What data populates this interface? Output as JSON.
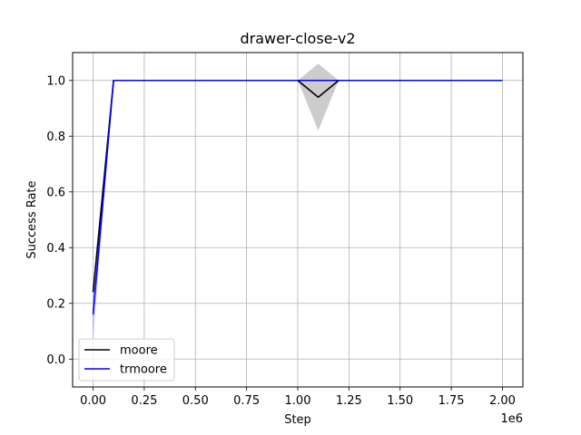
{
  "chart_data": {
    "type": "line",
    "title": "drawer-close-v2",
    "xlabel": "Step",
    "ylabel": "Success Rate",
    "x_offset_label": "1e6",
    "xlim": [
      -0.1,
      2.1
    ],
    "ylim": [
      -0.1,
      1.1
    ],
    "xticks": [
      0.0,
      0.25,
      0.5,
      0.75,
      1.0,
      1.25,
      1.5,
      1.75,
      2.0
    ],
    "xtick_labels": [
      "0.00",
      "0.25",
      "0.50",
      "0.75",
      "1.00",
      "1.25",
      "1.50",
      "1.75",
      "2.00"
    ],
    "yticks": [
      0.0,
      0.2,
      0.4,
      0.6,
      0.8,
      1.0
    ],
    "ytick_labels": [
      "0.0",
      "0.2",
      "0.4",
      "0.6",
      "0.8",
      "1.0"
    ],
    "grid": true,
    "legend_position": "lower-left",
    "series": [
      {
        "name": "moore",
        "color": "#000000",
        "band_color": "#808080",
        "x": [
          0.0,
          0.1,
          0.2,
          0.3,
          0.4,
          0.5,
          0.6,
          0.7,
          0.8,
          0.9,
          1.0,
          1.1,
          1.2,
          1.3,
          1.4,
          1.5,
          1.6,
          1.7,
          1.8,
          1.9,
          2.0
        ],
        "y": [
          0.24,
          1.0,
          1.0,
          1.0,
          1.0,
          1.0,
          1.0,
          1.0,
          1.0,
          1.0,
          1.0,
          0.94,
          1.0,
          1.0,
          1.0,
          1.0,
          1.0,
          1.0,
          1.0,
          1.0,
          1.0
        ],
        "y_lower": [
          0.24,
          1.0,
          1.0,
          1.0,
          1.0,
          1.0,
          1.0,
          1.0,
          1.0,
          1.0,
          1.0,
          0.82,
          1.0,
          1.0,
          1.0,
          1.0,
          1.0,
          1.0,
          1.0,
          1.0,
          1.0
        ],
        "y_upper": [
          0.24,
          1.0,
          1.0,
          1.0,
          1.0,
          1.0,
          1.0,
          1.0,
          1.0,
          1.0,
          1.0,
          1.06,
          1.0,
          1.0,
          1.0,
          1.0,
          1.0,
          1.0,
          1.0,
          1.0,
          1.0
        ]
      },
      {
        "name": "trmoore",
        "color": "#0000ff",
        "band_color": "#8080ff",
        "x": [
          0.0,
          0.1,
          0.2,
          0.3,
          0.4,
          0.5,
          0.6,
          0.7,
          0.8,
          0.9,
          1.0,
          1.1,
          1.2,
          1.3,
          1.4,
          1.5,
          1.6,
          1.7,
          1.8,
          1.9,
          2.0
        ],
        "y": [
          0.16,
          1.0,
          1.0,
          1.0,
          1.0,
          1.0,
          1.0,
          1.0,
          1.0,
          1.0,
          1.0,
          1.0,
          1.0,
          1.0,
          1.0,
          1.0,
          1.0,
          1.0,
          1.0,
          1.0,
          1.0
        ],
        "y_lower": [
          0.07,
          1.0,
          1.0,
          1.0,
          1.0,
          1.0,
          1.0,
          1.0,
          1.0,
          1.0,
          1.0,
          1.0,
          1.0,
          1.0,
          1.0,
          1.0,
          1.0,
          1.0,
          1.0,
          1.0,
          1.0
        ],
        "y_upper": [
          0.25,
          1.0,
          1.0,
          1.0,
          1.0,
          1.0,
          1.0,
          1.0,
          1.0,
          1.0,
          1.0,
          1.0,
          1.0,
          1.0,
          1.0,
          1.0,
          1.0,
          1.0,
          1.0,
          1.0,
          1.0
        ]
      }
    ]
  }
}
